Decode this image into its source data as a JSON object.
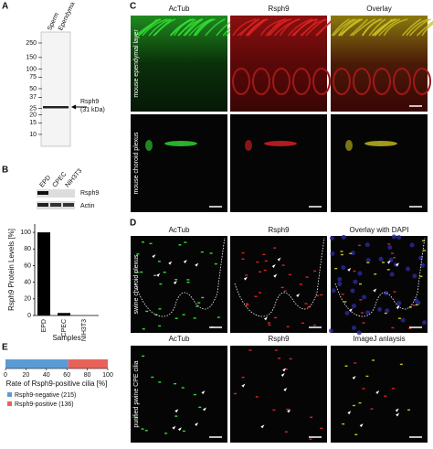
{
  "figure": {
    "A": {
      "label": "A",
      "lanes": [
        "Sperm",
        "Ependyma"
      ],
      "markers": [
        250,
        150,
        100,
        75,
        50,
        37,
        25,
        20,
        15,
        10
      ],
      "band_label": "Rsph9",
      "band_size": "(31 kDa)"
    },
    "B": {
      "label": "B",
      "blot_lanes": [
        "EPD",
        "CPEC",
        "NIH3T3"
      ],
      "blot_rows": [
        "Rsph9",
        "Actin"
      ]
    },
    "C": {
      "label": "C",
      "columns": [
        "AcTub",
        "Rsph9",
        "Overlay"
      ],
      "rows": [
        "mouse ependymal layer",
        "mouse choroid plexus"
      ]
    },
    "D": {
      "label": "D",
      "columns": [
        "AcTub",
        "Rsph9",
        "Overlay with DAPI"
      ],
      "rows": [
        "swine choroid plexus",
        "purified swine CPE cilia"
      ],
      "columns2": [
        "AcTub",
        "Rsph9",
        "ImageJ anlaysis"
      ]
    },
    "E": {
      "label": "E"
    }
  },
  "chart_data": [
    {
      "type": "bar",
      "ylabel": "Rsph9 Protein Levels [%]",
      "xlabel": "Samples",
      "categories": [
        "EPD",
        "CPEC",
        "NIH3T3"
      ],
      "values": [
        100,
        3,
        0
      ],
      "color": "#000000",
      "ylim": [
        0,
        110
      ],
      "yticks": [
        0,
        20,
        40,
        60,
        80,
        100
      ]
    },
    {
      "type": "stacked_hbar",
      "xlabel": "Rate of Rsph9-positive cilia [%]",
      "series": [
        {
          "name": "Rsph9-negative (215)",
          "color": "#5b9bd5",
          "values": [
            61.3
          ]
        },
        {
          "name": "Rsph9-positive (136)",
          "color": "#e8625a",
          "values": [
            38.7
          ]
        }
      ],
      "xlim": [
        0,
        100
      ],
      "xticks": [
        0,
        20,
        40,
        60,
        80,
        100
      ]
    }
  ]
}
